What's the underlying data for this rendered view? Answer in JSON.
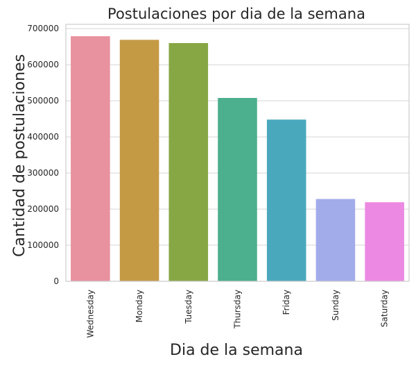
{
  "chart_data": {
    "type": "bar",
    "title": "Postulaciones por dia de la semana",
    "xlabel": "Dia de la semana",
    "ylabel": "Cantidad de postulaciones",
    "categories": [
      "Wednesday",
      "Monday",
      "Tuesday",
      "Thursday",
      "Friday",
      "Sunday",
      "Saturday"
    ],
    "values": [
      679000,
      669000,
      660000,
      508000,
      448000,
      228000,
      219000
    ],
    "colors": [
      "#e8919f",
      "#c49a45",
      "#87a744",
      "#4caf8d",
      "#4aa8bd",
      "#a2acea",
      "#ec89e2"
    ],
    "ylim": [
      0,
      712000
    ],
    "yticks": [
      0,
      100000,
      200000,
      300000,
      400000,
      500000,
      600000,
      700000
    ],
    "grid": true
  }
}
